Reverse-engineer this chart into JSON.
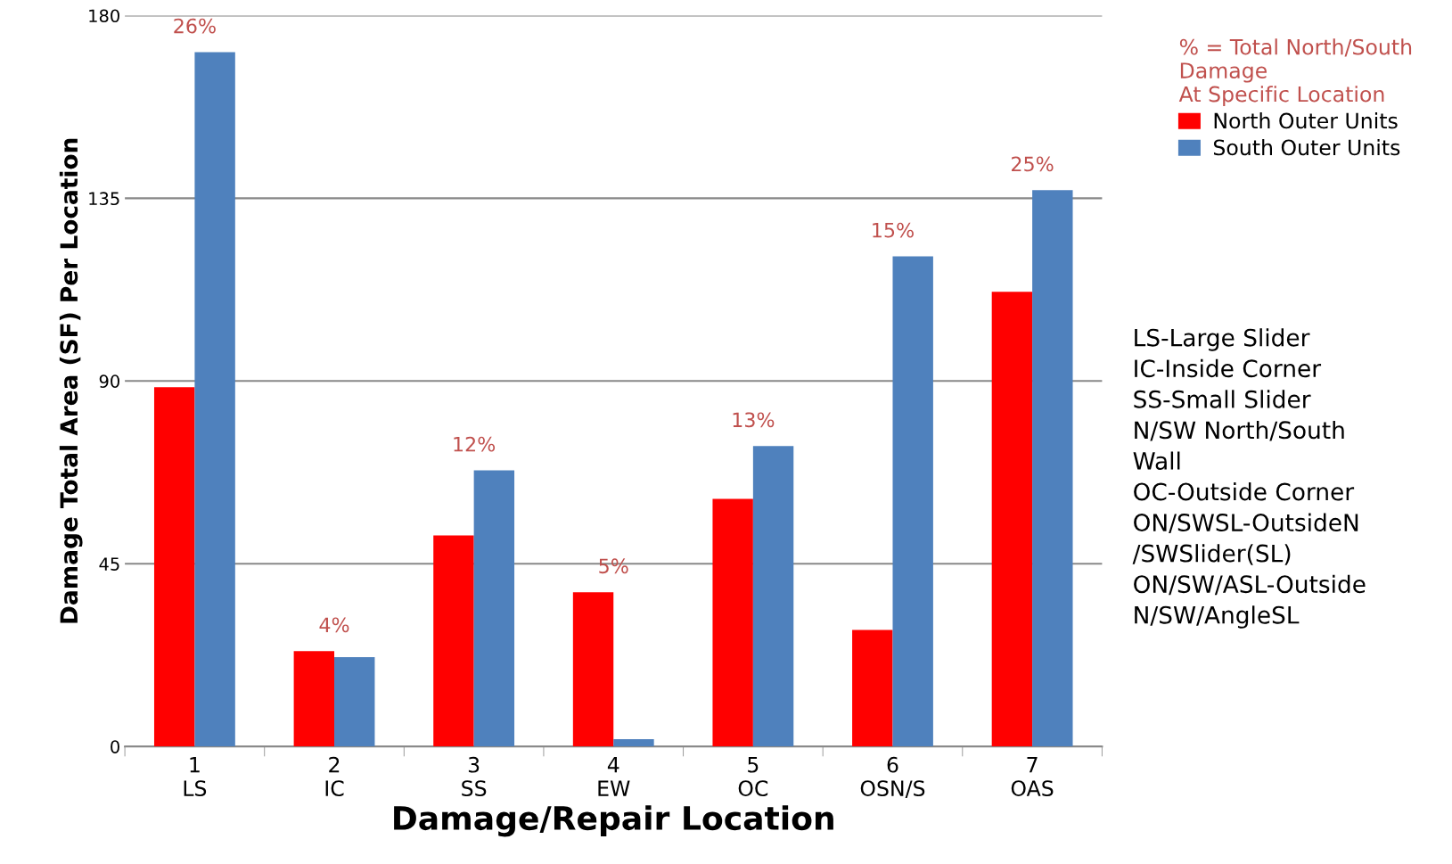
{
  "chart_data": {
    "type": "bar",
    "xlabel": "Damage/Repair Location",
    "ylabel": "Damage Total Area (SF) Per Location",
    "categories": [
      "1\nLS",
      "2\nIC",
      "3\nSS",
      "4\nEW",
      "5\nOC",
      "6\nOSN/S",
      "7\nOAS"
    ],
    "series": [
      {
        "name": "North Outer Units",
        "color": "#ff0000",
        "values": [
          88.5,
          23.5,
          52,
          38,
          61,
          28.7,
          112
        ]
      },
      {
        "name": "South Outer Units",
        "color": "#4f81bd",
        "values": [
          171,
          22,
          68,
          1.8,
          74,
          120.7,
          137
        ]
      }
    ],
    "ylim": [
      0,
      180
    ],
    "yticks": [
      0,
      45,
      90,
      135,
      180
    ],
    "grid": "y",
    "legend": "top right",
    "legend_title": "% = Total North/South\nDamage\nAt Specific Location",
    "annotations": [
      "26%",
      "4%",
      "12%",
      "5%",
      "13%",
      "15%",
      "25%",
      "LS-Large Slider\nIC-Inside Corner\nSS-Small Slider\nN/SW North/South\nWall\nOC-Outside Corner\nON/SWSL-OutsideN\n/SWSlider(SL)\nON/SW/ASL-Outside\nN/SW/AngleSL"
    ]
  }
}
